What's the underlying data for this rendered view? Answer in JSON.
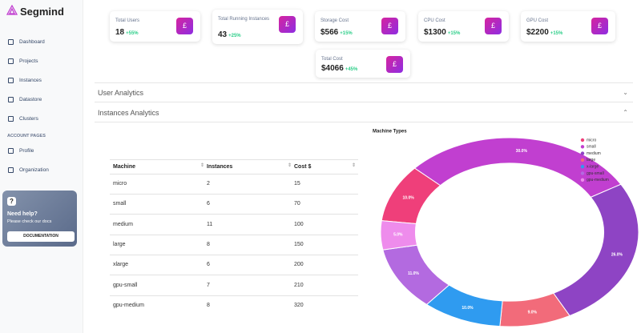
{
  "sidebar": {
    "brand": "Segmind",
    "nav": [
      "Dashboard",
      "Projects",
      "Instances",
      "Datastore",
      "Clusters"
    ],
    "section": "ACCOUNT PAGES",
    "account_nav": [
      "Profile",
      "Organization"
    ],
    "help": {
      "title": "Need help?",
      "text": "Please check our docs",
      "button": "DOCUMENTATION"
    }
  },
  "stats": [
    {
      "label": "Total Users",
      "value": "18",
      "change": "+55%"
    },
    {
      "label": "Total Running Instances",
      "value": "43",
      "change": "+25%"
    },
    {
      "label": "Storage Cost",
      "value": "$566",
      "change": "+15%"
    },
    {
      "label": "CPU Cost",
      "value": "$1300",
      "change": "+15%"
    },
    {
      "label": "GPU Cost",
      "value": "$2200",
      "change": "+15%"
    },
    {
      "label": "Total Cost",
      "value": "$4066",
      "change": "+45%"
    }
  ],
  "accordions": [
    "User Analytics",
    "Instances Analytics"
  ],
  "table": {
    "columns": [
      "Machine",
      "Instances",
      "Cost $"
    ],
    "rows": [
      [
        "micro",
        2,
        15
      ],
      [
        "small",
        6,
        70
      ],
      [
        "medium",
        11,
        100
      ],
      [
        "large",
        8,
        150
      ],
      [
        "xlarge",
        6,
        200
      ],
      [
        "gpu-small",
        7,
        210
      ],
      [
        "gpu-medium",
        8,
        320
      ]
    ]
  },
  "chart_data": {
    "type": "pie",
    "donut": true,
    "title": "Machine Types",
    "categories": [
      "micro",
      "small",
      "medium",
      "large",
      "x-large",
      "gpu-small",
      "gpu-medium"
    ],
    "values": [
      10,
      30,
      26,
      9,
      10,
      11,
      5
    ],
    "value_labels": [
      "10.0%",
      "30.0%",
      "26.0%",
      "9.0%",
      "10.0%",
      "11.0%",
      "5.0%"
    ],
    "colors": [
      "#ef3f7a",
      "#c13fd0",
      "#8e44c4",
      "#f26b7a",
      "#2f9bf0",
      "#b36ae0",
      "#ee8cec"
    ],
    "legend": "top-right"
  }
}
